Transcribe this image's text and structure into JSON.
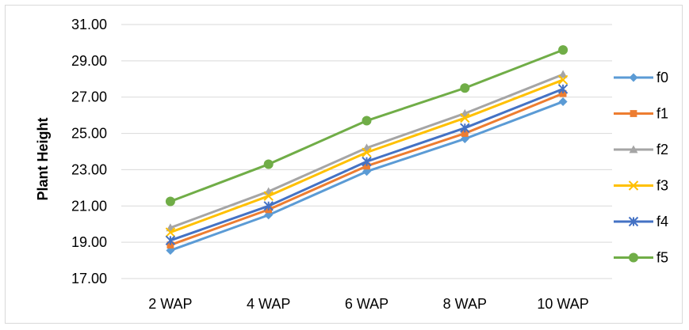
{
  "chart_data": {
    "type": "line",
    "title": "",
    "xlabel": "",
    "ylabel": "Plant Height",
    "categories": [
      "2 WAP",
      "4 WAP",
      "6 WAP",
      "8 WAP",
      "10 WAP"
    ],
    "ylim": [
      17.0,
      31.0
    ],
    "yticks": [
      "17.00",
      "19.00",
      "21.00",
      "23.00",
      "25.00",
      "27.00",
      "29.00",
      "31.00"
    ],
    "grid": true,
    "legend_position": "right",
    "series": [
      {
        "name": "f0",
        "color": "#5b9bd5",
        "marker": "diamond",
        "values": [
          18.55,
          20.5,
          22.9,
          24.7,
          26.75
        ]
      },
      {
        "name": "f1",
        "color": "#ed7d31",
        "marker": "square",
        "values": [
          18.85,
          20.8,
          23.2,
          25.0,
          27.2
        ]
      },
      {
        "name": "f2",
        "color": "#a5a5a5",
        "marker": "triangle",
        "values": [
          19.8,
          21.8,
          24.2,
          26.1,
          28.25
        ]
      },
      {
        "name": "f3",
        "color": "#ffc000",
        "marker": "x",
        "values": [
          19.55,
          21.55,
          23.95,
          25.85,
          27.95
        ]
      },
      {
        "name": "f4",
        "color": "#4472c4",
        "marker": "star",
        "values": [
          19.1,
          21.0,
          23.45,
          25.3,
          27.45
        ]
      },
      {
        "name": "f5",
        "color": "#70ad47",
        "marker": "circle",
        "values": [
          21.25,
          23.3,
          25.7,
          27.5,
          29.6
        ]
      }
    ]
  }
}
